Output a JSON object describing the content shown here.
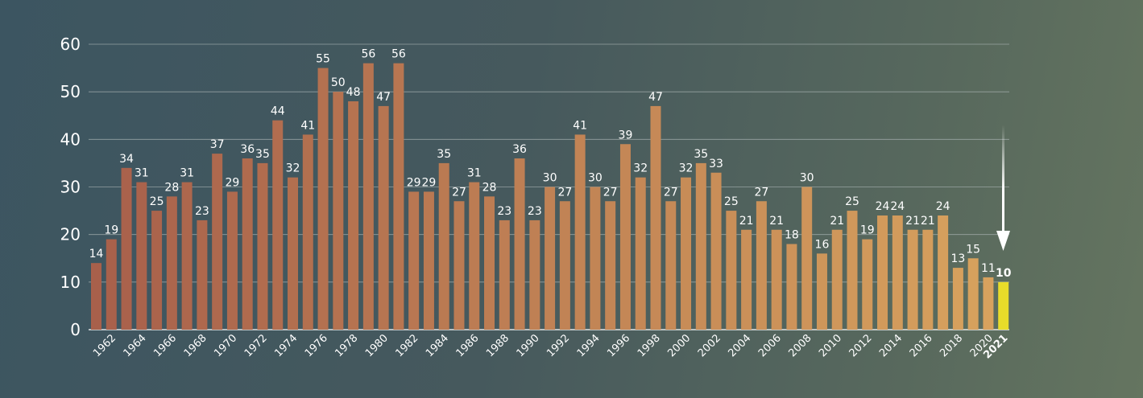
{
  "chart_data": {
    "type": "bar",
    "title": "",
    "xlabel": "",
    "ylabel": "",
    "ylim": [
      0,
      60
    ],
    "yticks": [
      0,
      10,
      20,
      30,
      40,
      50,
      60
    ],
    "grid": true,
    "categories": [
      1961,
      1962,
      1963,
      1964,
      1965,
      1966,
      1967,
      1968,
      1969,
      1970,
      1971,
      1972,
      1973,
      1974,
      1975,
      1976,
      1977,
      1978,
      1979,
      1980,
      1981,
      1982,
      1983,
      1984,
      1985,
      1986,
      1987,
      1988,
      1989,
      1990,
      1991,
      1992,
      1993,
      1994,
      1995,
      1996,
      1997,
      1998,
      1999,
      2000,
      2001,
      2002,
      2003,
      2004,
      2005,
      2006,
      2007,
      2008,
      2009,
      2010,
      2011,
      2012,
      2013,
      2014,
      2015,
      2016,
      2017,
      2018,
      2019,
      2020,
      2021
    ],
    "values": [
      14,
      19,
      34,
      31,
      25,
      28,
      31,
      23,
      37,
      29,
      36,
      35,
      44,
      32,
      41,
      55,
      50,
      48,
      56,
      47,
      56,
      29,
      29,
      35,
      27,
      31,
      28,
      23,
      36,
      23,
      30,
      27,
      41,
      30,
      27,
      39,
      32,
      47,
      27,
      32,
      35,
      33,
      25,
      21,
      27,
      21,
      18,
      30,
      16,
      21,
      25,
      19,
      24,
      24,
      21,
      21,
      24,
      13,
      15,
      11,
      10
    ],
    "xtick_labels": [
      "1962",
      "1964",
      "1966",
      "1968",
      "1970",
      "1972",
      "1974",
      "1976",
      "1978",
      "1980",
      "1982",
      "1984",
      "1986",
      "1988",
      "1990",
      "1992",
      "1994",
      "1996",
      "1998",
      "2000",
      "2002",
      "2004",
      "2006",
      "2008",
      "2010",
      "2012",
      "2014",
      "2016",
      "2018",
      "2020",
      "2021"
    ],
    "highlight": {
      "category": 2021,
      "label": "2021",
      "value_label": "10"
    },
    "colors": {
      "start": "#a8604b",
      "end": "#d8a35e",
      "highlight": "#e8dc2a",
      "grid": "#a9b3b3"
    },
    "annotation": "down-arrow-icon"
  }
}
